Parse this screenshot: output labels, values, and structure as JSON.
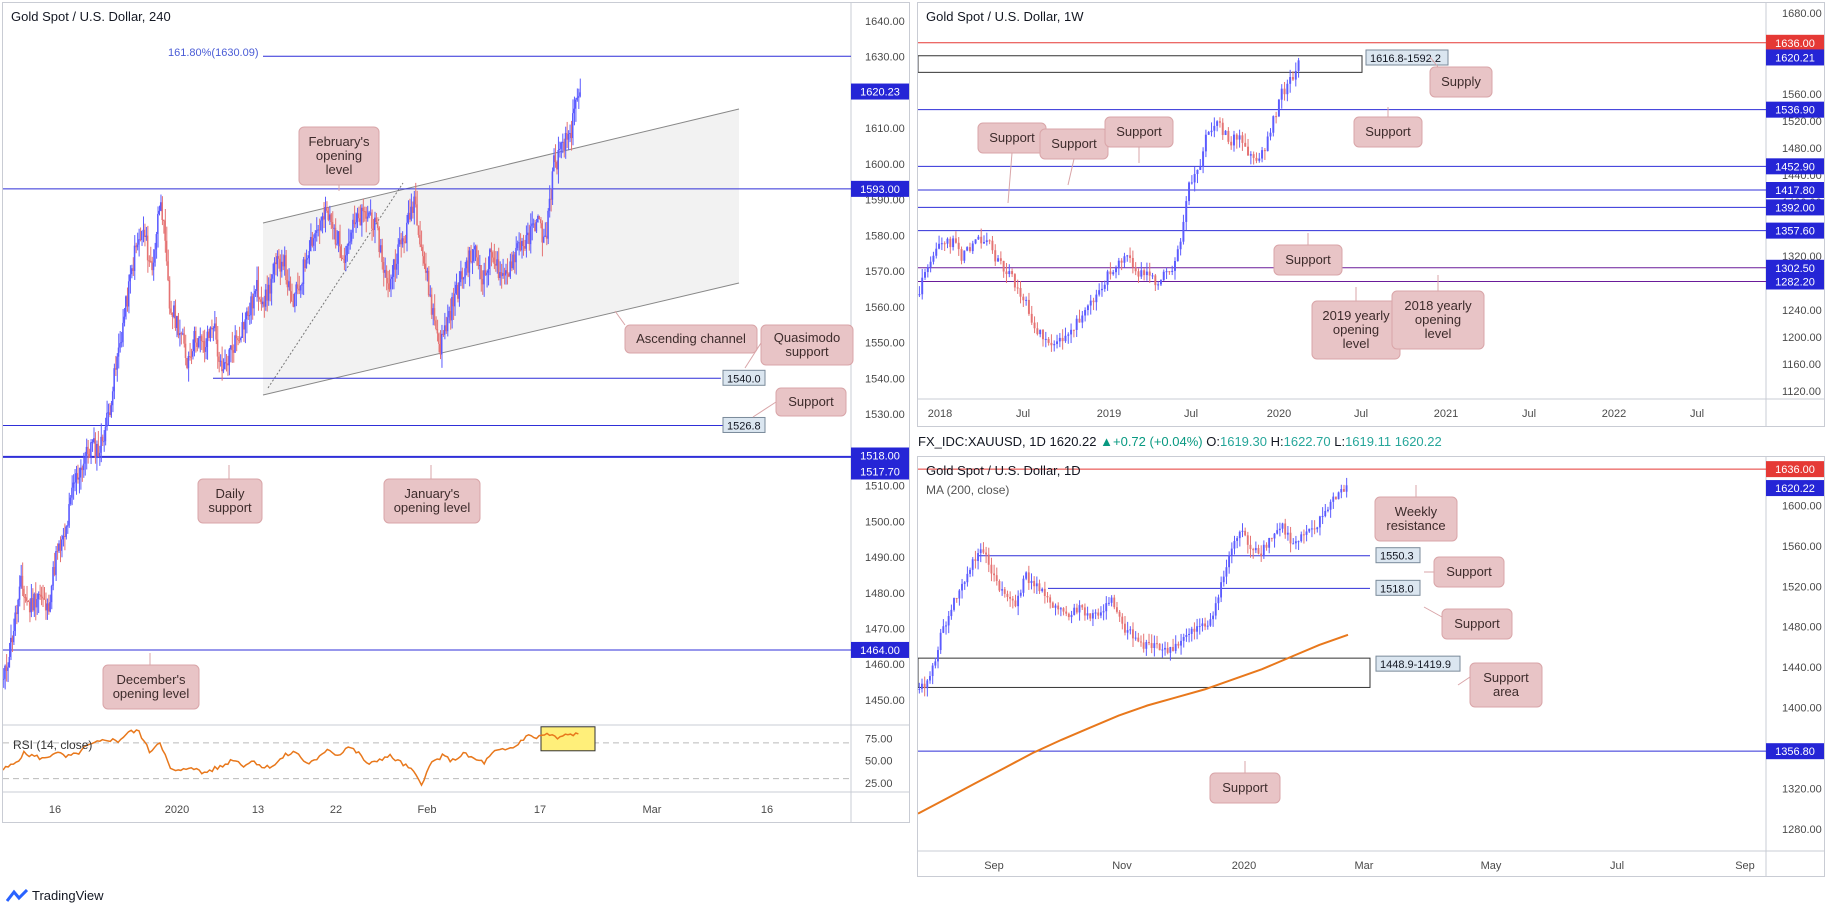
{
  "colors": {
    "up": "#5b5bff",
    "down": "#e57373",
    "level": "#2f2fd8",
    "resistance": "#e53935",
    "ma": "#e8781c",
    "rsi": "#e8781c",
    "annot": "#e8c4c6"
  },
  "panel_left": {
    "title": "Gold Spot / U.S. Dollar, 240",
    "y_ticks": [
      "1640.00",
      "1630.00",
      "1610.00",
      "1600.00",
      "1590.00",
      "1580.00",
      "1570.00",
      "1560.00",
      "1550.00",
      "1540.00",
      "1530.00",
      "1510.00",
      "1500.00",
      "1490.00",
      "1480.00",
      "1470.00",
      "1460.00",
      "1450.00"
    ],
    "x_ticks": [
      "16",
      "2020",
      "13",
      "22",
      "Feb",
      "17",
      "Mar",
      "16"
    ],
    "fib_label": "161.80%(1630.09)",
    "box_labels": [
      "1540.0",
      "1526.8"
    ],
    "price_labels": [
      "1620.23",
      "1593.00",
      "1518.00",
      "1517.70",
      "1464.00"
    ],
    "annotations": [
      "February's opening level",
      "Ascending channel",
      "Quasimodo support",
      "Support",
      "Daily support",
      "January's opening level",
      "December's opening level"
    ],
    "rsi_title": "RSI (14, close)",
    "rsi_ticks": [
      "75.00",
      "50.00",
      "25.00"
    ]
  },
  "panel_weekly": {
    "title": "Gold Spot / U.S. Dollar, 1W",
    "y_ticks": [
      "1680.00",
      "1560.00",
      "1520.00",
      "1480.00",
      "1440.00",
      "1400.00",
      "1360.00",
      "1320.00",
      "1240.00",
      "1200.00",
      "1160.00",
      "1120.00"
    ],
    "x_ticks": [
      "2018",
      "Jul",
      "2019",
      "Jul",
      "2020",
      "Jul",
      "2021",
      "Jul",
      "2022",
      "Jul"
    ],
    "box_label": "1616.8-1592.2",
    "price_labels": [
      "1636.00",
      "1620.21",
      "1536.90",
      "1452.90",
      "1417.80",
      "1392.00",
      "1357.60",
      "1302.50",
      "1282.20"
    ],
    "annotations": [
      "Supply",
      "Support",
      "Support",
      "Support",
      "Support",
      "Support",
      "2019 yearly opening level",
      "2018 yearly opening level"
    ]
  },
  "panel_daily": {
    "header_symbol": "FX_IDC:XAUUSD, 1D",
    "header_close": "1620.22",
    "header_change": "+0.72 (+0.04%)",
    "header_o_label": "O:",
    "header_o": "1619.30",
    "header_h_label": "H:",
    "header_h": "1622.70",
    "header_l_label": "L:",
    "header_l": "1619.11",
    "header_c_label": "",
    "header_c": "1620.22",
    "title": "Gold Spot / U.S. Dollar, 1D",
    "indicator": "MA (200, close)",
    "y_ticks": [
      "1600.00",
      "1560.00",
      "1520.00",
      "1480.00",
      "1440.00",
      "1400.00",
      "1320.00",
      "1280.00"
    ],
    "x_ticks": [
      "Sep",
      "Nov",
      "2020",
      "Mar",
      "May",
      "Jul",
      "Sep"
    ],
    "box_labels": [
      "1550.3",
      "1518.0",
      "1448.9-1419.9"
    ],
    "price_labels": [
      "1636.00",
      "1620.22",
      "1356.80"
    ],
    "annotations": [
      "Weekly resistance",
      "Support",
      "Support",
      "Support area",
      "Support"
    ]
  },
  "footer": {
    "brand": "TradingView"
  },
  "chart_data": [
    {
      "type": "candlestick",
      "title": "Gold Spot / U.S. Dollar, 240",
      "ylim": [
        1443,
        1645
      ],
      "levels": [
        {
          "label": "161.80%(1630.09)",
          "value": 1630.09
        },
        {
          "label": "February's opening level",
          "value": 1593.0
        },
        {
          "label": "Quasimodo support",
          "value": 1540.0
        },
        {
          "label": "Support",
          "value": 1526.8
        },
        {
          "label": "Daily support",
          "value": 1518.0
        },
        {
          "label": "January's opening level",
          "value": 1517.7
        },
        {
          "label": "December's opening level",
          "value": 1464.0
        }
      ],
      "last_price": 1620.23,
      "channel": {
        "name": "Ascending channel"
      },
      "path": [
        1455,
        1468,
        1482,
        1476,
        1480,
        1475,
        1490,
        1495,
        1510,
        1516,
        1521,
        1520,
        1530,
        1545,
        1560,
        1575,
        1581,
        1570,
        1592,
        1560,
        1555,
        1545,
        1552,
        1548,
        1556,
        1540,
        1548,
        1553,
        1558,
        1565,
        1562,
        1570,
        1574,
        1560,
        1567,
        1578,
        1582,
        1586,
        1580,
        1575,
        1582,
        1585,
        1586,
        1578,
        1565,
        1575,
        1580,
        1591,
        1575,
        1560,
        1549,
        1558,
        1565,
        1572,
        1575,
        1568,
        1576,
        1566,
        1572,
        1578,
        1578,
        1585,
        1578,
        1600,
        1604,
        1610,
        1620
      ]
    },
    {
      "type": "line",
      "title": "RSI (14, close)",
      "ylim": [
        15,
        90
      ],
      "series": [
        {
          "name": "RSI (14, close)",
          "values": [
            40,
            46,
            58,
            55,
            52,
            60,
            54,
            57,
            66,
            70,
            74,
            72,
            82,
            83,
            60,
            72,
            40,
            38,
            44,
            36,
            40,
            44,
            52,
            45,
            50,
            42,
            46,
            56,
            60,
            47,
            50,
            64,
            56,
            66,
            58,
            45,
            52,
            55,
            48,
            40,
            25,
            48,
            55,
            50,
            58,
            52,
            48,
            60,
            62,
            66,
            78,
            76,
            80,
            75,
            79,
            80
          ]
        }
      ]
    },
    {
      "type": "candlestick",
      "title": "Gold Spot / U.S. Dollar, 1W",
      "ylim": [
        1108,
        1695
      ],
      "levels": [
        {
          "label": "1636.00",
          "value": 1636.0
        },
        {
          "label": "1536.90",
          "value": 1536.9
        },
        {
          "label": "1452.90",
          "value": 1452.9
        },
        {
          "label": "1417.80",
          "value": 1417.8
        },
        {
          "label": "1392.00",
          "value": 1392.0
        },
        {
          "label": "1357.60",
          "value": 1357.6
        },
        {
          "label": "1302.50",
          "value": 1302.5
        },
        {
          "label": "1282.20",
          "value": 1282.2
        }
      ],
      "zone": {
        "label": "1616.8-1592.2",
        "low": 1592.2,
        "high": 1616.8
      },
      "last_price": 1620.21,
      "path": [
        1270,
        1300,
        1330,
        1345,
        1340,
        1320,
        1330,
        1340,
        1345,
        1320,
        1300,
        1290,
        1260,
        1240,
        1210,
        1190,
        1185,
        1200,
        1210,
        1225,
        1240,
        1260,
        1285,
        1295,
        1310,
        1320,
        1290,
        1300,
        1280,
        1290,
        1300,
        1345,
        1420,
        1440,
        1500,
        1520,
        1505,
        1490,
        1500,
        1470,
        1460,
        1480,
        1520,
        1560,
        1580,
        1610
      ]
    },
    {
      "type": "candlestick",
      "title": "Gold Spot / U.S. Dollar, 1D",
      "ylim": [
        1258,
        1648
      ],
      "levels": [
        {
          "label": "Weekly resistance",
          "value": 1636.0
        },
        {
          "label": "Support",
          "value": 1550.3
        },
        {
          "label": "Support",
          "value": 1518.0
        },
        {
          "label": "Support",
          "value": 1356.8
        }
      ],
      "zone": {
        "label": "1448.9-1419.9",
        "low": 1419.9,
        "high": 1448.9
      },
      "last_price": 1620.22,
      "ma200": [
        1295,
        1310,
        1325,
        1340,
        1355,
        1368,
        1380,
        1392,
        1402,
        1410,
        1418,
        1428,
        1438,
        1450,
        1462,
        1472
      ],
      "path": [
        1415,
        1430,
        1470,
        1500,
        1520,
        1545,
        1555,
        1530,
        1510,
        1505,
        1530,
        1520,
        1505,
        1500,
        1490,
        1500,
        1490,
        1495,
        1505,
        1480,
        1470,
        1460,
        1465,
        1455,
        1462,
        1470,
        1478,
        1482,
        1510,
        1550,
        1575,
        1560,
        1555,
        1570,
        1580,
        1560,
        1570,
        1575,
        1595,
        1610,
        1620
      ]
    }
  ]
}
